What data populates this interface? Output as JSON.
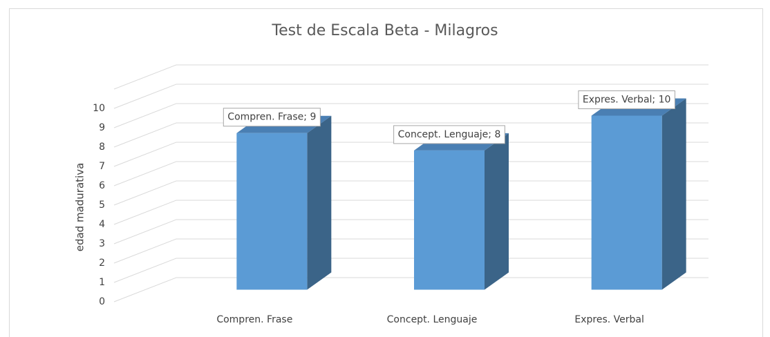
{
  "chart_data": {
    "type": "bar3d",
    "title": "Test de Escala Beta - Milagros",
    "y_label": "edad madurativa",
    "categories": [
      "Compren. Frase",
      "Concept. Lenguaje",
      "Expres. Verbal"
    ],
    "values": [
      9,
      8,
      10
    ],
    "value_labels": [
      "Compren. Frase; 9",
      "Concept. Lenguaje; 8",
      "Expres. Verbal; 10"
    ],
    "color": "#5b9bd5",
    "ylim": [
      0,
      11
    ],
    "yticks": [
      0,
      1,
      2,
      3,
      4,
      5,
      6,
      7,
      8,
      9,
      10
    ],
    "grid": true
  }
}
